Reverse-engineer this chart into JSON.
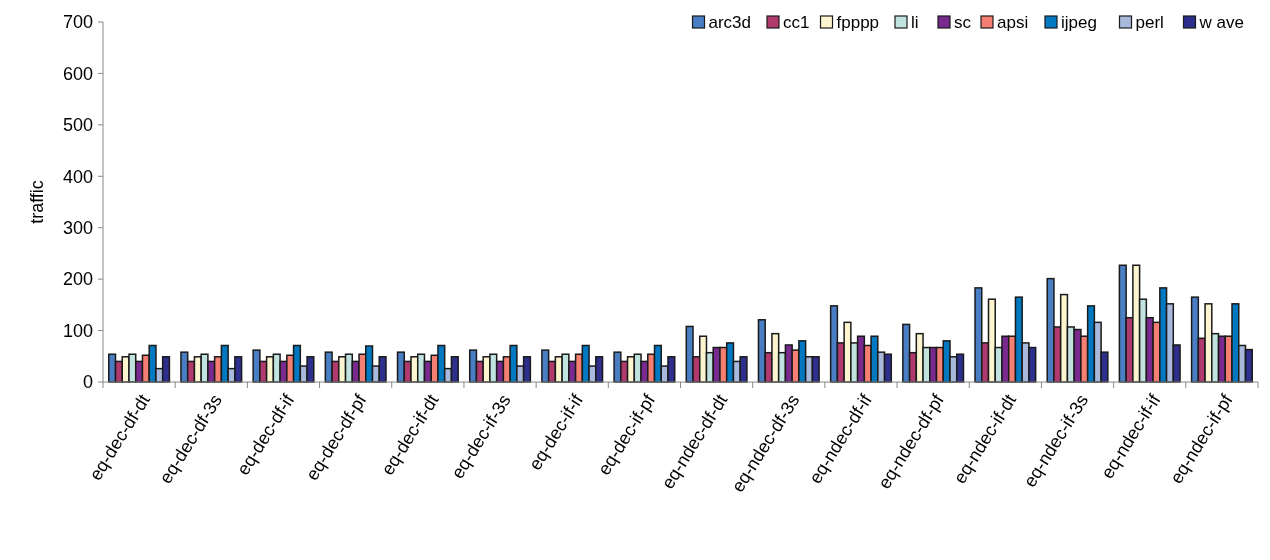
{
  "chart_data": {
    "type": "bar",
    "ylabel": "traffic",
    "categories": [
      "eq-dec-df-dt",
      "eq-dec-df-3s",
      "eq-dec-df-if",
      "eq-dec-df-pf",
      "eq-dec-if-dt",
      "eq-dec-if-3s",
      "eq-dec-if-if",
      "eq-dec-if-pf",
      "eq-ndec-df-dt",
      "eq-ndec-df-3s",
      "eq-ndec-df-if",
      "eq-ndec-df-pf",
      "eq-ndec-if-dt",
      "eq-ndec-if-3s",
      "eq-ndec-if-if",
      "eq-ndec-if-pf"
    ],
    "series": [
      {
        "name": "arc3d",
        "color": "#4a7ec4",
        "values": [
          54,
          58,
          62,
          58,
          58,
          62,
          62,
          58,
          108,
          121,
          148,
          112,
          183,
          201,
          227,
          165
        ]
      },
      {
        "name": "cc1",
        "color": "#b03a6e",
        "values": [
          40,
          40,
          40,
          40,
          40,
          40,
          40,
          40,
          49,
          57,
          76,
          57,
          76,
          107,
          125,
          85
        ]
      },
      {
        "name": "fpppp",
        "color": "#fcf5d0",
        "values": [
          49,
          49,
          49,
          49,
          49,
          49,
          49,
          49,
          89,
          94,
          116,
          94,
          161,
          170,
          227,
          152
        ]
      },
      {
        "name": "li",
        "color": "#c0e3e0",
        "values": [
          54,
          54,
          54,
          54,
          54,
          54,
          54,
          54,
          57,
          57,
          76,
          67,
          67,
          107,
          161,
          94
        ]
      },
      {
        "name": "sc",
        "color": "#7a2a8e",
        "values": [
          40,
          40,
          40,
          40,
          40,
          40,
          40,
          40,
          67,
          72,
          89,
          67,
          89,
          102,
          125,
          89
        ]
      },
      {
        "name": "apsi",
        "color": "#f47f72",
        "values": [
          52,
          49,
          52,
          54,
          52,
          49,
          54,
          54,
          67,
          62,
          71,
          67,
          89,
          89,
          116,
          89
        ]
      },
      {
        "name": "ijpeg",
        "color": "#0079c2",
        "values": [
          71,
          71,
          71,
          70,
          71,
          71,
          71,
          71,
          76,
          80,
          89,
          80,
          165,
          148,
          183,
          152
        ]
      },
      {
        "name": "perl",
        "color": "#a9b9dc",
        "values": [
          26,
          26,
          31,
          31,
          26,
          31,
          31,
          31,
          40,
          49,
          58,
          49,
          76,
          116,
          152,
          71
        ]
      },
      {
        "name": "w ave",
        "color": "#2e2e8c",
        "values": [
          49,
          49,
          49,
          49,
          49,
          49,
          49,
          49,
          49,
          49,
          54,
          54,
          67,
          58,
          72,
          63
        ]
      }
    ],
    "ylim": [
      0,
      700
    ],
    "yticks": [
      0,
      100,
      200,
      300,
      400,
      500,
      600,
      700
    ],
    "grid": false,
    "legend": "top right"
  }
}
